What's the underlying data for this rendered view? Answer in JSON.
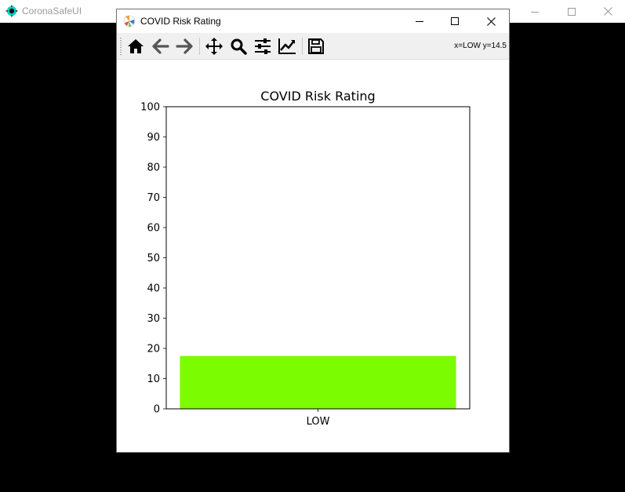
{
  "background_window": {
    "title": "CoronaSafeUI",
    "icon": "coronasafe-app-icon"
  },
  "figure_window": {
    "title": "COVID Risk Rating",
    "icon": "matplotlib-icon"
  },
  "toolbar": {
    "buttons": [
      "home-icon",
      "back-icon",
      "forward-icon",
      "pan-icon",
      "zoom-icon",
      "configure-subplots-icon",
      "edit-axis-icon",
      "save-icon"
    ],
    "coordinates": "x=LOW y=14.5"
  },
  "colors": {
    "bar": "#7cfc00",
    "titlebar_bg": "#ffffff",
    "toolbar_bg": "#f0f0f0"
  },
  "chart_data": {
    "type": "bar",
    "title": "COVID Risk Rating",
    "categories": [
      "LOW"
    ],
    "values": [
      17.5
    ],
    "ylim": [
      0,
      100
    ],
    "yticks": [
      "0",
      "10",
      "20",
      "30",
      "40",
      "50",
      "60",
      "70",
      "80",
      "90",
      "100"
    ],
    "xlabel": "",
    "ylabel": "",
    "grid": false
  }
}
